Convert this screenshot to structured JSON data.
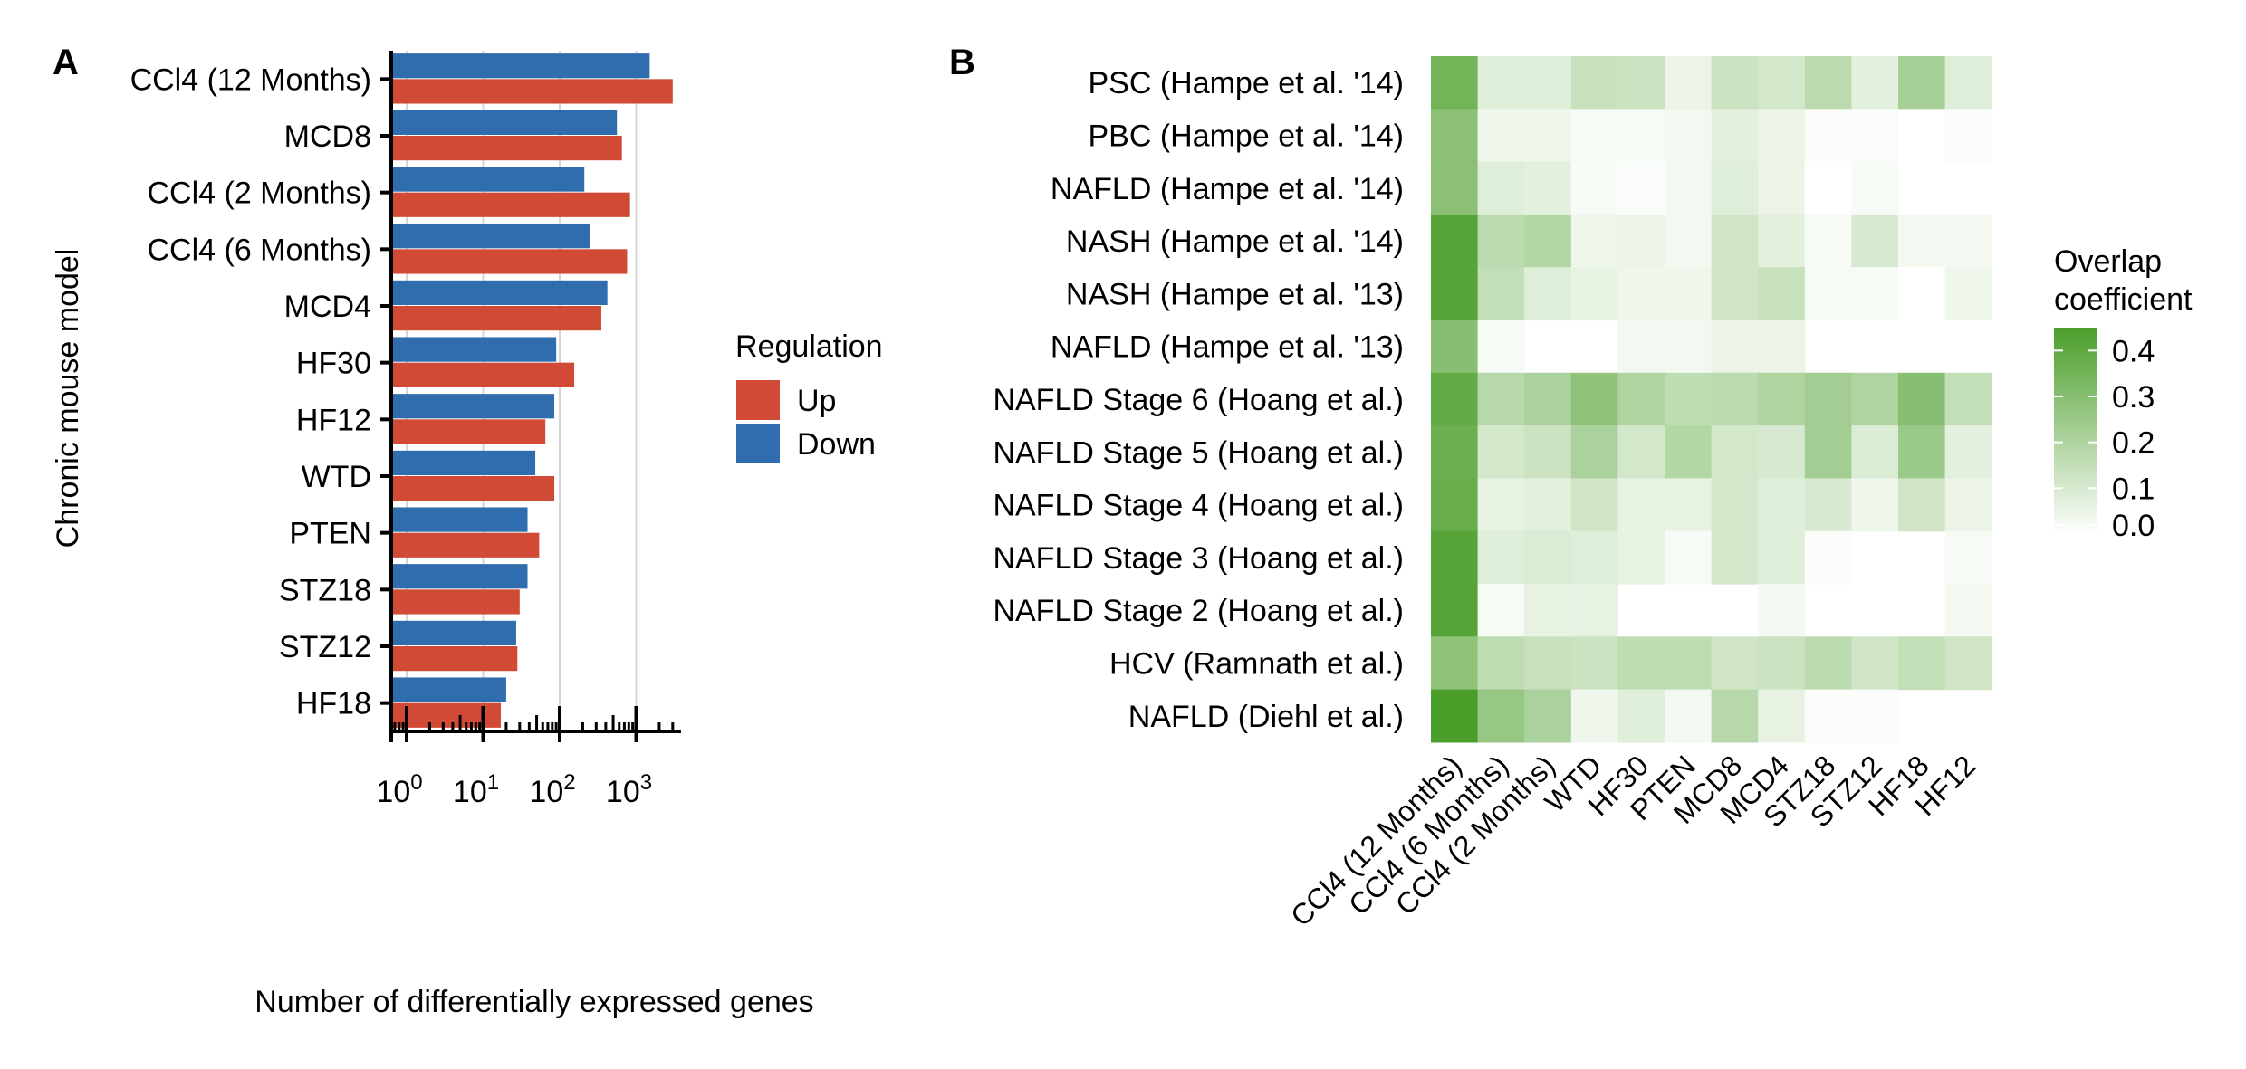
{
  "panel_a": {
    "label": "A",
    "legend": {
      "title": "Regulation",
      "items": [
        {
          "label": "Up",
          "color": "#D04A35"
        },
        {
          "label": "Down",
          "color": "#2F6DAE"
        }
      ]
    }
  },
  "panel_b": {
    "label": "B",
    "legend": {
      "title_line1": "Overlap",
      "title_line2": "coefficient",
      "ticks": [
        "0.4",
        "0.3",
        "0.2",
        "0.1",
        "0.0"
      ]
    }
  },
  "chart_data": [
    {
      "type": "bar",
      "orientation": "horizontal",
      "ylabel": "Chronic mouse model",
      "xlabel": "Number of differentially expressed genes",
      "xscale": "log10",
      "xlim": [
        0.55,
        4200
      ],
      "xticks": [
        {
          "value": 1,
          "base": "10",
          "exp": "0"
        },
        {
          "value": 10,
          "base": "10",
          "exp": "1"
        },
        {
          "value": 100,
          "base": "10",
          "exp": "2"
        },
        {
          "value": 1000,
          "base": "10",
          "exp": "3"
        }
      ],
      "grid": true,
      "legend_position": "right",
      "categories": [
        "CCl4 (12 Months)",
        "MCD8",
        "CCl4 (2 Months)",
        "CCl4 (6 Months)",
        "MCD4",
        "HF30",
        "HF12",
        "WTD",
        "PTEN",
        "STZ18",
        "STZ12",
        "HF18"
      ],
      "series": [
        {
          "name": "Down",
          "color": "#2F6DAE",
          "values": [
            1500,
            560,
            210,
            250,
            420,
            90,
            85,
            48,
            38,
            38,
            27,
            20
          ]
        },
        {
          "name": "Up",
          "color": "#D04A35",
          "values": [
            3000,
            650,
            830,
            760,
            350,
            155,
            65,
            85,
            54,
            30,
            28,
            17
          ]
        }
      ]
    },
    {
      "type": "heatmap",
      "color_scale": {
        "low": "#FFFFFF",
        "high": "#4B9E2A",
        "min": 0.0,
        "max": 0.45
      },
      "rows": [
        "PSC (Hampe et al. '14)",
        "PBC (Hampe et al. '14)",
        "NAFLD (Hampe et al. '14)",
        "NASH (Hampe et al. '14)",
        "NASH (Hampe et al. '13)",
        "NAFLD (Hampe et al. '13)",
        "NAFLD Stage 6 (Hoang et al.)",
        "NAFLD Stage 5 (Hoang et al.)",
        "NAFLD Stage 4 (Hoang et al.)",
        "NAFLD Stage 3 (Hoang et al.)",
        "NAFLD Stage 2 (Hoang et al.)",
        "HCV (Ramnath et al.)",
        "NAFLD (Diehl et al.)"
      ],
      "columns": [
        "CCl4 (12 Months)",
        "CCl4 (6 Months)",
        "CCl4 (2 Months)",
        "WTD",
        "HF30",
        "PTEN",
        "MCD8",
        "MCD4",
        "STZ18",
        "STZ12",
        "HF18",
        "HF12"
      ],
      "values": [
        [
          0.35,
          0.08,
          0.08,
          0.14,
          0.13,
          0.05,
          0.13,
          0.11,
          0.17,
          0.07,
          0.22,
          0.08
        ],
        [
          0.29,
          0.04,
          0.04,
          0.02,
          0.02,
          0.03,
          0.07,
          0.05,
          0.01,
          0.01,
          0.0,
          0.01
        ],
        [
          0.29,
          0.08,
          0.07,
          0.02,
          0.01,
          0.03,
          0.08,
          0.05,
          0.0,
          0.02,
          null,
          null
        ],
        [
          0.42,
          0.17,
          0.19,
          0.04,
          0.05,
          0.03,
          0.12,
          0.07,
          0.02,
          0.1,
          0.03,
          0.03
        ],
        [
          0.42,
          0.15,
          0.08,
          0.06,
          0.04,
          0.04,
          0.12,
          0.14,
          0.02,
          0.02,
          0.0,
          0.04
        ],
        [
          0.3,
          0.02,
          null,
          null,
          0.03,
          0.03,
          0.05,
          0.05,
          null,
          null,
          null,
          null
        ],
        [
          0.39,
          0.18,
          0.21,
          0.28,
          0.2,
          0.16,
          0.17,
          0.2,
          0.23,
          0.2,
          0.3,
          0.15
        ],
        [
          0.37,
          0.11,
          0.13,
          0.21,
          0.11,
          0.19,
          0.11,
          0.1,
          0.23,
          0.09,
          0.25,
          0.07
        ],
        [
          0.38,
          0.06,
          0.07,
          0.12,
          0.06,
          0.06,
          0.11,
          0.08,
          0.1,
          0.04,
          0.12,
          0.05
        ],
        [
          0.42,
          0.08,
          0.09,
          0.08,
          0.06,
          0.02,
          0.11,
          0.08,
          0.01,
          null,
          null,
          0.02
        ],
        [
          0.42,
          0.02,
          0.06,
          0.06,
          null,
          null,
          null,
          0.03,
          null,
          null,
          null,
          0.03
        ],
        [
          0.28,
          0.16,
          0.14,
          0.13,
          0.16,
          0.16,
          0.12,
          0.13,
          0.17,
          0.12,
          0.15,
          0.12
        ],
        [
          0.47,
          0.26,
          0.21,
          0.04,
          0.08,
          0.03,
          0.18,
          0.06,
          0.01,
          0.01,
          null,
          null
        ]
      ]
    }
  ]
}
